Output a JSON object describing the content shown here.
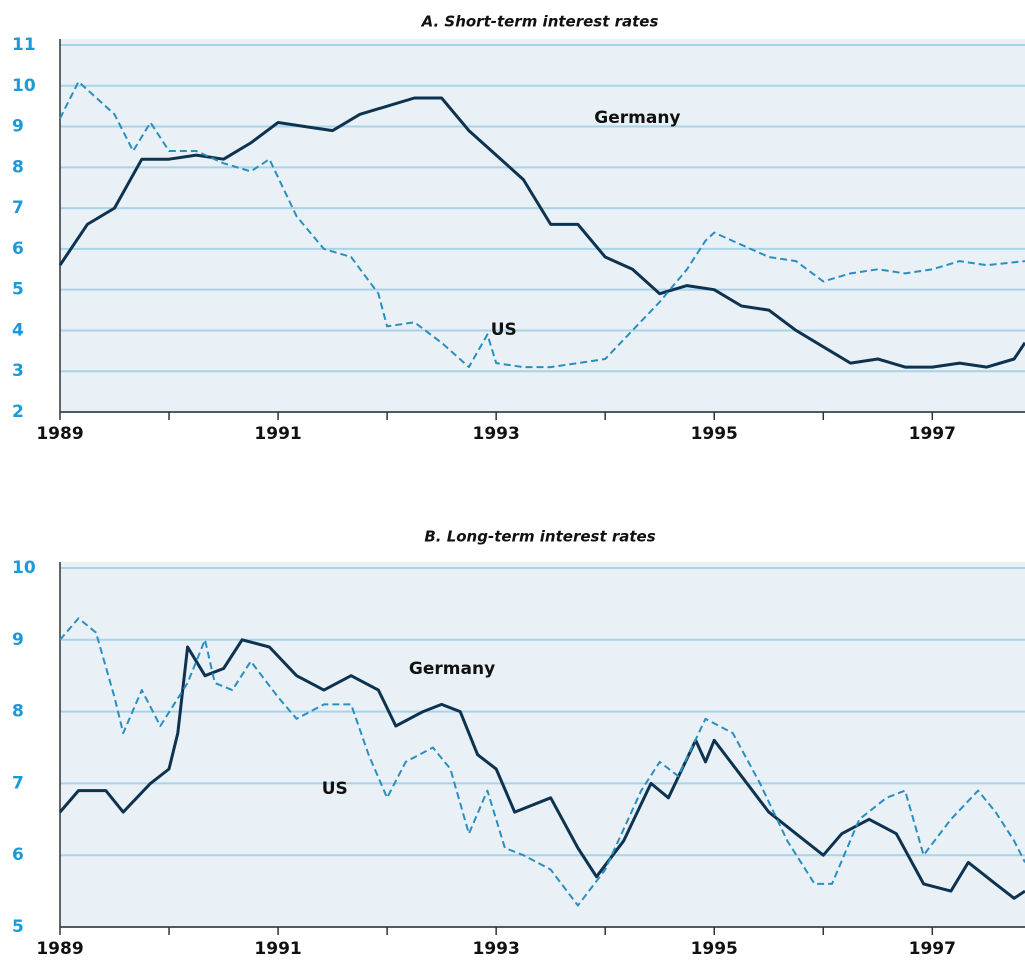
{
  "chart_data": [
    {
      "type": "line",
      "title": "A. Short-term interest rates",
      "xlim": [
        1989,
        1997.85
      ],
      "xticks": [
        1989,
        1991,
        1993,
        1995,
        1997
      ],
      "xminorticks": [
        1990,
        1992,
        1994,
        1996
      ],
      "ylim": [
        2,
        11
      ],
      "yticks": [
        2,
        3,
        4,
        5,
        6,
        7,
        8,
        9,
        10,
        11
      ],
      "grid": true,
      "series": [
        {
          "name": "Germany",
          "color": "#0d3350",
          "dash": false,
          "x": [
            1989,
            1989.25,
            1989.5,
            1989.75,
            1990,
            1990.25,
            1990.5,
            1990.75,
            1991,
            1991.25,
            1991.5,
            1991.75,
            1992,
            1992.25,
            1992.5,
            1992.75,
            1993,
            1993.25,
            1993.5,
            1993.75,
            1994,
            1994.25,
            1994.5,
            1994.75,
            1995,
            1995.25,
            1995.5,
            1995.75,
            1996,
            1996.25,
            1996.5,
            1996.75,
            1997,
            1997.25,
            1997.5,
            1997.75,
            1997.85
          ],
          "values": [
            5.6,
            6.6,
            7.0,
            8.2,
            8.2,
            8.3,
            8.2,
            8.6,
            9.1,
            9.0,
            8.9,
            9.3,
            9.5,
            9.7,
            9.7,
            8.9,
            8.3,
            7.7,
            6.6,
            6.6,
            5.8,
            5.5,
            4.9,
            5.1,
            5.0,
            4.6,
            4.5,
            4.0,
            3.6,
            3.2,
            3.3,
            3.1,
            3.1,
            3.2,
            3.1,
            3.3,
            3.7
          ]
        },
        {
          "name": "US",
          "color": "#2a8fbf",
          "dash": true,
          "x": [
            1989,
            1989.17,
            1989.5,
            1989.67,
            1989.83,
            1990,
            1990.25,
            1990.5,
            1990.75,
            1990.92,
            1991.17,
            1991.42,
            1991.67,
            1991.92,
            1992,
            1992.25,
            1992.5,
            1992.75,
            1992.92,
            1993,
            1993.25,
            1993.5,
            1993.75,
            1994,
            1994.25,
            1994.5,
            1994.75,
            1994.92,
            1995,
            1995.25,
            1995.5,
            1995.75,
            1996,
            1996.25,
            1996.5,
            1996.75,
            1997,
            1997.25,
            1997.5,
            1997.85
          ],
          "values": [
            9.2,
            10.1,
            9.3,
            8.4,
            9.1,
            8.4,
            8.4,
            8.1,
            7.9,
            8.2,
            6.8,
            6.0,
            5.8,
            4.9,
            4.1,
            4.2,
            3.7,
            3.1,
            3.9,
            3.2,
            3.1,
            3.1,
            3.2,
            3.3,
            4.0,
            4.7,
            5.5,
            6.2,
            6.4,
            6.1,
            5.8,
            5.7,
            5.2,
            5.4,
            5.5,
            5.4,
            5.5,
            5.7,
            5.6,
            5.7
          ]
        }
      ]
    },
    {
      "type": "line",
      "title": "B. Long-term interest rates",
      "xlim": [
        1989,
        1997.85
      ],
      "xticks": [
        1989,
        1991,
        1993,
        1995,
        1997
      ],
      "xminorticks": [
        1990,
        1992,
        1994,
        1996
      ],
      "ylim": [
        5,
        10
      ],
      "yticks": [
        5,
        6,
        7,
        8,
        9,
        10
      ],
      "grid": true,
      "series": [
        {
          "name": "Germany",
          "color": "#0d3350",
          "dash": false,
          "x": [
            1989,
            1989.17,
            1989.42,
            1989.58,
            1989.83,
            1990,
            1990.08,
            1990.17,
            1990.33,
            1990.5,
            1990.67,
            1990.92,
            1991.17,
            1991.42,
            1991.67,
            1991.92,
            1992.08,
            1992.33,
            1992.5,
            1992.67,
            1992.83,
            1993,
            1993.17,
            1993.5,
            1993.75,
            1993.92,
            1994.17,
            1994.42,
            1994.58,
            1994.83,
            1994.92,
            1995,
            1995.25,
            1995.5,
            1995.75,
            1996,
            1996.17,
            1996.42,
            1996.67,
            1996.92,
            1997.17,
            1997.33,
            1997.58,
            1997.75,
            1997.85
          ],
          "values": [
            6.6,
            6.9,
            6.9,
            6.6,
            7.0,
            7.2,
            7.7,
            8.9,
            8.5,
            8.6,
            9.0,
            8.9,
            8.5,
            8.3,
            8.5,
            8.3,
            7.8,
            8.0,
            8.1,
            8.0,
            7.4,
            7.2,
            6.6,
            6.8,
            6.1,
            5.7,
            6.2,
            7.0,
            6.8,
            7.6,
            7.3,
            7.6,
            7.1,
            6.6,
            6.3,
            6.0,
            6.3,
            6.5,
            6.3,
            5.6,
            5.5,
            5.9,
            5.6,
            5.4,
            5.5
          ]
        },
        {
          "name": "US",
          "color": "#2a8fbf",
          "dash": true,
          "x": [
            1989,
            1989.17,
            1989.33,
            1989.5,
            1989.58,
            1989.75,
            1989.92,
            1990.17,
            1990.33,
            1990.42,
            1990.58,
            1990.75,
            1991,
            1991.17,
            1991.42,
            1991.67,
            1991.83,
            1992,
            1992.17,
            1992.42,
            1992.58,
            1992.75,
            1992.92,
            1993.08,
            1993.25,
            1993.5,
            1993.75,
            1994,
            1994.33,
            1994.5,
            1994.67,
            1994.92,
            1995.17,
            1995.42,
            1995.67,
            1995.92,
            1996.08,
            1996.33,
            1996.58,
            1996.75,
            1996.92,
            1997.17,
            1997.42,
            1997.58,
            1997.75,
            1997.85
          ],
          "values": [
            9.0,
            9.3,
            9.1,
            8.2,
            7.7,
            8.3,
            7.8,
            8.4,
            9.0,
            8.4,
            8.3,
            8.7,
            8.2,
            7.9,
            8.1,
            8.1,
            7.4,
            6.8,
            7.3,
            7.5,
            7.2,
            6.3,
            6.9,
            6.1,
            6.0,
            5.8,
            5.3,
            5.8,
            6.9,
            7.3,
            7.1,
            7.9,
            7.7,
            7.0,
            6.2,
            5.6,
            5.6,
            6.5,
            6.8,
            6.9,
            6.0,
            6.5,
            6.9,
            6.6,
            6.2,
            5.9
          ]
        }
      ]
    }
  ]
}
